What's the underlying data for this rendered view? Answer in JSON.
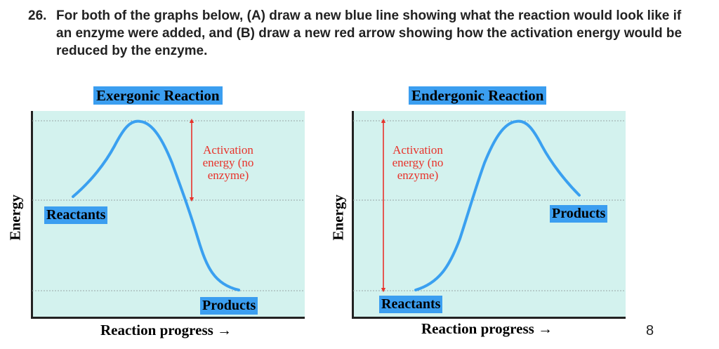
{
  "question": {
    "number": "26.",
    "text": "For both of the graphs below, (A) draw a new blue line showing what the reaction would look like if an enzyme were added, and (B) draw a new red arrow showing how the activation energy would be reduced by the enzyme."
  },
  "page_number": "8",
  "colors": {
    "curve": "#3aa0f0",
    "arrow": "#e8322a",
    "plot_bg": "#d3f2ee",
    "label_bg": "#3b9ef0"
  },
  "charts": [
    {
      "title": "Exergonic Reaction",
      "ylabel": "Energy",
      "xlabel": "Reaction progress",
      "x_arrow": "→",
      "start_label": "Reactants",
      "end_label": "Products",
      "annotation": [
        "Activation",
        "energy (no",
        "enzyme)"
      ]
    },
    {
      "title": "Endergonic Reaction",
      "ylabel": "Energy",
      "xlabel": "Reaction progress",
      "x_arrow": "→",
      "start_label": "Reactants",
      "end_label": "Products",
      "annotation": [
        "Activation",
        "energy (no",
        "enzyme)"
      ]
    }
  ]
}
